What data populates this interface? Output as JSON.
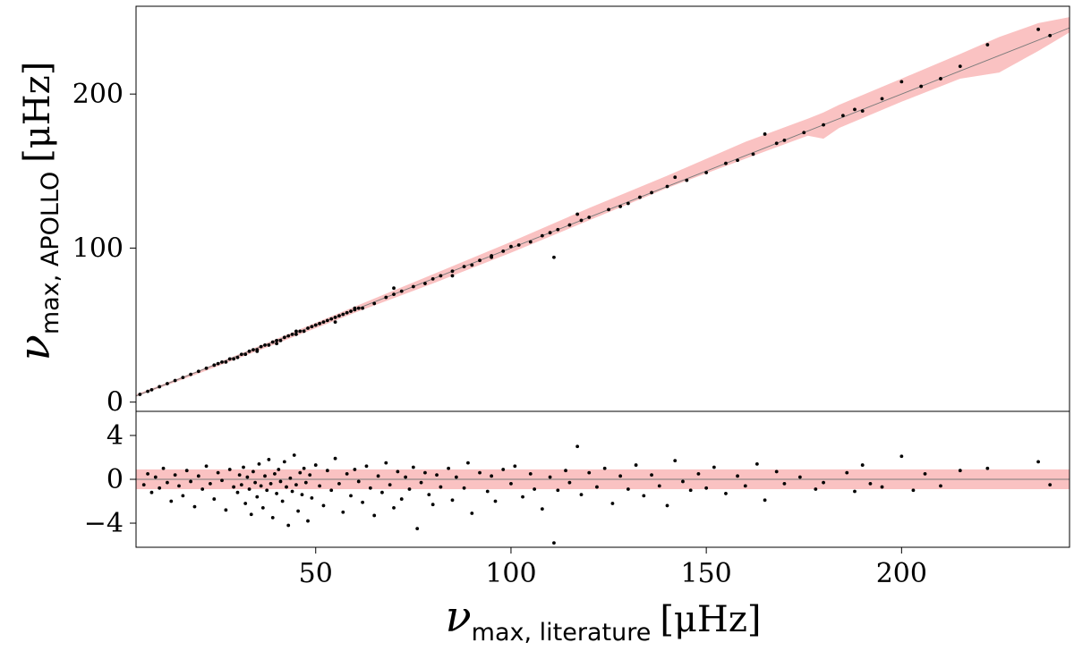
{
  "chart_data": [
    {
      "type": "scatter",
      "panel": "top",
      "title": "",
      "xlim": [
        4,
        243
      ],
      "ylim": [
        -6,
        257
      ],
      "yticks": [
        0,
        100,
        200
      ],
      "ytick_labels": [
        "0",
        "100",
        "200"
      ],
      "ylabel": {
        "symbol": "ν",
        "subscript": "max, APOLLO",
        "unit": "[μHz]"
      },
      "band_color": "#f7a1a1",
      "point_color": "#000000",
      "band": {
        "x": [
          4,
          20,
          40,
          60,
          80,
          100,
          120,
          140,
          160,
          176,
          180,
          184,
          200,
          215,
          225,
          235,
          243
        ],
        "upper": [
          5,
          20.5,
          41,
          62,
          83,
          104,
          126,
          147,
          169,
          184,
          188,
          193,
          210,
          226,
          237,
          246,
          250
        ],
        "lower": [
          3.5,
          18.5,
          38,
          58,
          77,
          97,
          118,
          139,
          158,
          173,
          171,
          178,
          195,
          210,
          214,
          228,
          240
        ]
      },
      "series": [
        {
          "points": [
            [
              5,
              5
            ],
            [
              7,
              7
            ],
            [
              8,
              8
            ],
            [
              10,
              10
            ],
            [
              12,
              12
            ],
            [
              14,
              14
            ],
            [
              16,
              16
            ],
            [
              18,
              18
            ],
            [
              20,
              20
            ],
            [
              22,
              22
            ],
            [
              24,
              24
            ],
            [
              25,
              25
            ],
            [
              26,
              26
            ],
            [
              27,
              26
            ],
            [
              28,
              28
            ],
            [
              29,
              28
            ],
            [
              30,
              29
            ],
            [
              31,
              31
            ],
            [
              32,
              31
            ],
            [
              33,
              33
            ],
            [
              34,
              34
            ],
            [
              35,
              34
            ],
            [
              36,
              36
            ],
            [
              37,
              37
            ],
            [
              38,
              37
            ],
            [
              39,
              39
            ],
            [
              40,
              40
            ],
            [
              41,
              40
            ],
            [
              42,
              42
            ],
            [
              43,
              43
            ],
            [
              44,
              44
            ],
            [
              45,
              44
            ],
            [
              46,
              46
            ],
            [
              47,
              46
            ],
            [
              48,
              48
            ],
            [
              49,
              49
            ],
            [
              50,
              50
            ],
            [
              51,
              51
            ],
            [
              52,
              52
            ],
            [
              53,
              53
            ],
            [
              54,
              54
            ],
            [
              55,
              55
            ],
            [
              56,
              56
            ],
            [
              57,
              57
            ],
            [
              58,
              58
            ],
            [
              59,
              59
            ],
            [
              60,
              60
            ],
            [
              61,
              61
            ],
            [
              62,
              61
            ],
            [
              65,
              64
            ],
            [
              68,
              68
            ],
            [
              70,
              70
            ],
            [
              72,
              72
            ],
            [
              75,
              75
            ],
            [
              78,
              77
            ],
            [
              80,
              80
            ],
            [
              82,
              82
            ],
            [
              85,
              85
            ],
            [
              88,
              88
            ],
            [
              90,
              89
            ],
            [
              92,
              92
            ],
            [
              95,
              95
            ],
            [
              98,
              98
            ],
            [
              100,
              101
            ],
            [
              102,
              102
            ],
            [
              105,
              104
            ],
            [
              108,
              108
            ],
            [
              110,
              110
            ],
            [
              112,
              112
            ],
            [
              115,
              115
            ],
            [
              118,
              118
            ],
            [
              120,
              120
            ],
            [
              125,
              125
            ],
            [
              128,
              127
            ],
            [
              130,
              129
            ],
            [
              133,
              133
            ],
            [
              136,
              136
            ],
            [
              140,
              140
            ],
            [
              142,
              146
            ],
            [
              145,
              144
            ],
            [
              150,
              149
            ],
            [
              155,
              155
            ],
            [
              158,
              157
            ],
            [
              162,
              161
            ],
            [
              165,
              174
            ],
            [
              168,
              168
            ],
            [
              170,
              170
            ],
            [
              175,
              175
            ],
            [
              180,
              180
            ],
            [
              185,
              186
            ],
            [
              188,
              190
            ],
            [
              190,
              189
            ],
            [
              195,
              197
            ],
            [
              200,
              208
            ],
            [
              205,
              205
            ],
            [
              210,
              210
            ],
            [
              215,
              218
            ],
            [
              222,
              232
            ],
            [
              235,
              242
            ],
            [
              238,
              238
            ],
            [
              111,
              94
            ],
            [
              117,
              122
            ],
            [
              85,
              82
            ],
            [
              95,
              94
            ],
            [
              70,
              74
            ],
            [
              60,
              61
            ],
            [
              55,
              52
            ],
            [
              45,
              46
            ],
            [
              40,
              38
            ],
            [
              35,
              33
            ]
          ]
        }
      ]
    },
    {
      "type": "scatter",
      "panel": "bottom",
      "xlim": [
        4,
        243
      ],
      "ylim": [
        -6.2,
        6.2
      ],
      "xticks": [
        50,
        100,
        150,
        200
      ],
      "xtick_labels": [
        "50",
        "100",
        "150",
        "200"
      ],
      "yticks": [
        -4,
        0,
        4
      ],
      "ytick_labels": [
        "−4",
        "0",
        "4"
      ],
      "xlabel": {
        "symbol": "ν",
        "subscript": "max, literature",
        "unit": "[μHz]"
      },
      "band": {
        "lower": -0.9,
        "upper": 0.9
      },
      "reference_line": 0,
      "series": [
        {
          "points": [
            [
              6,
              -0.5
            ],
            [
              7,
              0.5
            ],
            [
              8,
              -1.2
            ],
            [
              9,
              0.2
            ],
            [
              10,
              -0.8
            ],
            [
              11,
              1.0
            ],
            [
              12,
              -0.3
            ],
            [
              13,
              -2.0
            ],
            [
              14,
              0.4
            ],
            [
              15,
              -0.6
            ],
            [
              16,
              -1.5
            ],
            [
              17,
              0.8
            ],
            [
              18,
              -0.2
            ],
            [
              19,
              -2.5
            ],
            [
              20,
              0.3
            ],
            [
              21,
              -0.9
            ],
            [
              22,
              1.2
            ],
            [
              23,
              -0.4
            ],
            [
              24,
              -1.8
            ],
            [
              25,
              0.6
            ],
            [
              26,
              -0.1
            ],
            [
              27,
              -2.8
            ],
            [
              28,
              0.9
            ],
            [
              29,
              -0.7
            ],
            [
              30,
              -1.2
            ],
            [
              30.5,
              0.4
            ],
            [
              31,
              -0.5
            ],
            [
              31.5,
              1.1
            ],
            [
              32,
              -2.2
            ],
            [
              32.5,
              0.2
            ],
            [
              33,
              -0.9
            ],
            [
              33.5,
              -3.2
            ],
            [
              34,
              0.7
            ],
            [
              34.5,
              -0.3
            ],
            [
              35,
              -1.6
            ],
            [
              35.5,
              1.4
            ],
            [
              36,
              -0.6
            ],
            [
              36.5,
              -2.6
            ],
            [
              37,
              0.3
            ],
            [
              37.5,
              -1.0
            ],
            [
              38,
              1.8
            ],
            [
              38.5,
              -0.4
            ],
            [
              39,
              -3.5
            ],
            [
              39.5,
              0.5
            ],
            [
              40,
              -1.3
            ],
            [
              40.5,
              0.9
            ],
            [
              41,
              -0.2
            ],
            [
              41.5,
              -2.0
            ],
            [
              42,
              1.6
            ],
            [
              42.5,
              -0.7
            ],
            [
              43,
              -4.2
            ],
            [
              43.5,
              0.1
            ],
            [
              44,
              -1.1
            ],
            [
              44.5,
              2.2
            ],
            [
              45,
              -0.5
            ],
            [
              45.5,
              -2.9
            ],
            [
              46,
              0.6
            ],
            [
              46.5,
              -1.4
            ],
            [
              47,
              1.0
            ],
            [
              47.5,
              -0.3
            ],
            [
              48,
              -3.8
            ],
            [
              48.5,
              0.4
            ],
            [
              49,
              -1.7
            ],
            [
              50,
              1.3
            ],
            [
              51,
              -0.6
            ],
            [
              52,
              -2.4
            ],
            [
              53,
              0.8
            ],
            [
              54,
              -1.0
            ],
            [
              55,
              1.9
            ],
            [
              56,
              -0.4
            ],
            [
              57,
              -3.0
            ],
            [
              58,
              0.5
            ],
            [
              59,
              -1.5
            ],
            [
              60,
              0.9
            ],
            [
              61,
              -0.2
            ],
            [
              62,
              -2.1
            ],
            [
              63,
              1.2
            ],
            [
              64,
              -0.8
            ],
            [
              65,
              -3.3
            ],
            [
              66,
              0.3
            ],
            [
              67,
              -1.2
            ],
            [
              68,
              1.5
            ],
            [
              69,
              -0.5
            ],
            [
              70,
              -2.6
            ],
            [
              71,
              0.7
            ],
            [
              72,
              -1.8
            ],
            [
              73,
              0.2
            ],
            [
              74,
              -0.9
            ],
            [
              75,
              1.1
            ],
            [
              76,
              -4.5
            ],
            [
              77,
              -0.3
            ],
            [
              78,
              0.6
            ],
            [
              79,
              -1.4
            ],
            [
              80,
              -2.3
            ],
            [
              81,
              0.4
            ],
            [
              82,
              -0.7
            ],
            [
              84,
              1.0
            ],
            [
              85,
              -1.9
            ],
            [
              86,
              0.2
            ],
            [
              88,
              -0.8
            ],
            [
              89,
              1.5
            ],
            [
              90,
              -3.1
            ],
            [
              92,
              0.6
            ],
            [
              94,
              -1.1
            ],
            [
              95,
              0.3
            ],
            [
              96,
              -2.0
            ],
            [
              98,
              0.9
            ],
            [
              100,
              -0.4
            ],
            [
              101,
              1.2
            ],
            [
              103,
              -1.6
            ],
            [
              105,
              0.5
            ],
            [
              106,
              -0.9
            ],
            [
              108,
              -2.7
            ],
            [
              110,
              0.2
            ],
            [
              111,
              -5.8
            ],
            [
              112,
              -1.0
            ],
            [
              114,
              0.8
            ],
            [
              115,
              -0.3
            ],
            [
              117,
              3.0
            ],
            [
              118,
              -1.4
            ],
            [
              120,
              0.6
            ],
            [
              122,
              -0.7
            ],
            [
              124,
              1.0
            ],
            [
              126,
              -2.2
            ],
            [
              128,
              0.3
            ],
            [
              130,
              -0.9
            ],
            [
              132,
              1.3
            ],
            [
              134,
              -1.5
            ],
            [
              136,
              0.4
            ],
            [
              138,
              -0.6
            ],
            [
              140,
              -2.4
            ],
            [
              142,
              1.7
            ],
            [
              144,
              -0.2
            ],
            [
              146,
              -1.0
            ],
            [
              148,
              0.5
            ],
            [
              150,
              -0.8
            ],
            [
              152,
              1.1
            ],
            [
              155,
              -1.3
            ],
            [
              158,
              0.3
            ],
            [
              160,
              -0.6
            ],
            [
              163,
              1.4
            ],
            [
              165,
              -1.9
            ],
            [
              168,
              0.7
            ],
            [
              170,
              -0.4
            ],
            [
              174,
              0.2
            ],
            [
              178,
              -0.9
            ],
            [
              180,
              -0.3
            ],
            [
              186,
              0.6
            ],
            [
              188,
              -1.1
            ],
            [
              190,
              1.3
            ],
            [
              192,
              -0.4
            ],
            [
              195,
              -0.7
            ],
            [
              200,
              2.1
            ],
            [
              203,
              -1.0
            ],
            [
              206,
              0.5
            ],
            [
              210,
              -0.6
            ],
            [
              215,
              0.8
            ],
            [
              222,
              1.0
            ],
            [
              235,
              1.6
            ],
            [
              238,
              -0.5
            ]
          ]
        }
      ]
    }
  ]
}
